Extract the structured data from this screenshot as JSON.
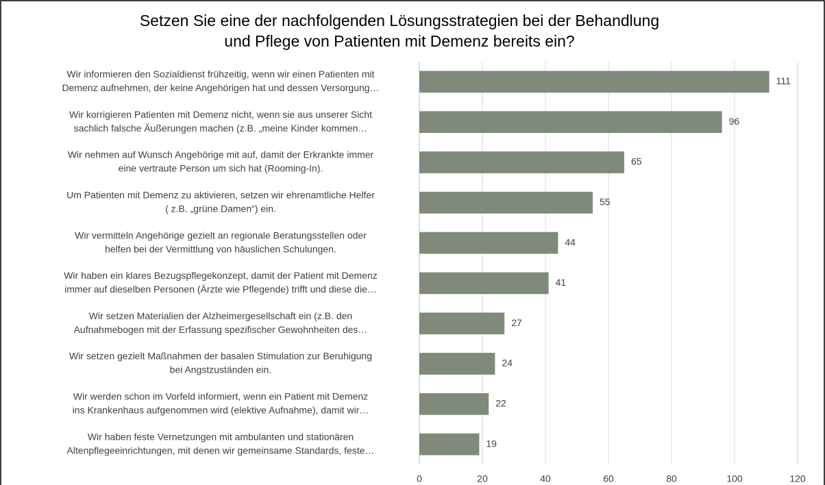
{
  "chart_data": {
    "type": "barh",
    "title": [
      "Setzen Sie eine der nachfolgenden Lösungsstrategien bei der Behandlung",
      "und Pflege von Patienten mit Demenz bereits ein?"
    ],
    "categories": [
      [
        "Wir informieren den Sozialdienst frühzeitig, wenn wir einen Patienten mit",
        "Demenz aufnehmen, der keine Angehörigen hat und dessen Versorgung…"
      ],
      [
        "Wir korrigieren Patienten mit Demenz nicht, wenn sie aus unserer Sicht",
        "sachlich falsche Äußerungen machen (z.B. „meine Kinder kommen…"
      ],
      [
        "Wir nehmen auf Wunsch Angehörige mit auf, damit der Erkrankte immer",
        "eine vertraute Person um sich  hat (Rooming-In)."
      ],
      [
        "Um Patienten mit Demenz zu aktivieren, setzen wir ehrenamtliche Helfer",
        "( z.B. „grüne Damen“) ein."
      ],
      [
        "Wir vermitteln Angehörige gezielt an regionale Beratungsstellen oder",
        "helfen bei der Vermittlung von häuslichen Schulungen."
      ],
      [
        "Wir haben ein klares Bezugspflegekonzept, damit der Patient mit Demenz",
        "immer auf dieselben Personen (Ärzte wie Pflegende) trifft und diese die…"
      ],
      [
        "Wir setzen Materialien der Alzheimergesellschaft ein (z.B. den",
        "Aufnahmebogen mit der Erfassung spezifischer Gewohnheiten des…"
      ],
      [
        "Wir setzen gezielt Maßnahmen der basalen Stimulation zur Beruhigung",
        "bei Angstzuständen ein."
      ],
      [
        "Wir werden schon im Vorfeld informiert, wenn ein Patient mit Demenz",
        "ins Krankenhaus aufgenommen wird (elektive Aufnahme), damit wir…"
      ],
      [
        "Wir haben feste Vernetzungen mit ambulanten und stationären",
        "Altenpflegeeinrichtungen, mit denen wir gemeinsame Standards, feste…"
      ]
    ],
    "values": [
      111,
      96,
      65,
      55,
      44,
      41,
      27,
      24,
      22,
      19
    ],
    "color": "#7f8a7b",
    "xlim": [
      0,
      120
    ],
    "xticks": [
      0,
      20,
      40,
      60,
      80,
      100,
      120
    ],
    "grid": true
  }
}
